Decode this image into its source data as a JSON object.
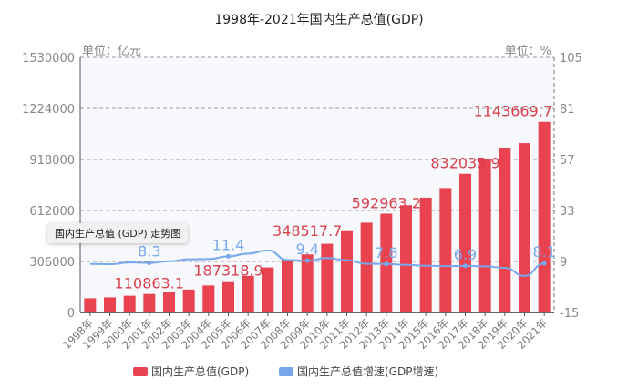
{
  "chart_data": {
    "type": "bar",
    "title": "1998年-2021年国内生产总值(GDP)",
    "categories": [
      "1998年",
      "1999年",
      "2000年",
      "2001年",
      "2002年",
      "2003年",
      "2004年",
      "2005年",
      "2006年",
      "2007年",
      "2008年",
      "2009年",
      "2010年",
      "2011年",
      "2012年",
      "2013年",
      "2014年",
      "2015年",
      "2016年",
      "2017年",
      "2018年",
      "2019年",
      "2020年",
      "2021年"
    ],
    "series": [
      {
        "name": "国内生产总值(GDP)",
        "type": "bar",
        "axis": "left",
        "color": "#e8434f",
        "values": [
          85195.5,
          90564.4,
          100280.1,
          110863.1,
          121717.4,
          137422,
          161840.2,
          187318.9,
          219438.5,
          270092.3,
          319244.6,
          348517.7,
          412119.3,
          487940.2,
          538580,
          592963.2,
          643563.1,
          688858.2,
          746395.1,
          832035.9,
          919281.1,
          986515.2,
          1015986.2,
          1143669.7
        ],
        "labeled_indices": [
          3,
          7,
          11,
          15,
          19,
          23
        ]
      },
      {
        "name": "国内生产总值增速(GDP增速)",
        "type": "line",
        "axis": "right",
        "color": "#78a8ec",
        "values": [
          7.8,
          7.7,
          8.5,
          8.3,
          9.1,
          10.0,
          10.1,
          11.4,
          12.7,
          14.2,
          9.7,
          9.4,
          10.6,
          9.6,
          7.9,
          7.8,
          7.4,
          7.0,
          6.8,
          6.9,
          6.7,
          6.0,
          2.2,
          8.1
        ],
        "labeled_indices": [
          3,
          7,
          11,
          15,
          19,
          23
        ]
      }
    ],
    "left_axis": {
      "label": "单位：亿元",
      "ylim": [
        0,
        1530000
      ],
      "ticks": [
        "0",
        "306000",
        "612000",
        "918000",
        "1224000",
        "1530000"
      ]
    },
    "right_axis": {
      "label": "单位：%",
      "ylim": [
        -15,
        105
      ],
      "ticks": [
        "-15",
        "9",
        "33",
        "57",
        "81",
        "105"
      ]
    },
    "grid": true,
    "legend": "bottom",
    "tooltip": "国内生产总值 (GDP) 走势图"
  }
}
